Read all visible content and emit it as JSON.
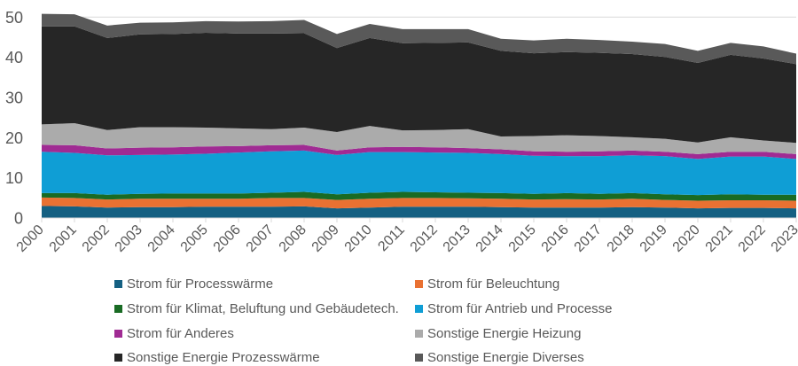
{
  "chart_data": {
    "type": "area",
    "stacked": true,
    "title": "",
    "xlabel": "",
    "ylabel": "",
    "ylim": [
      0,
      50
    ],
    "yticks": [
      "0",
      "10",
      "20",
      "30",
      "40",
      "50"
    ],
    "grid": true,
    "legend_position": "bottom",
    "categories": [
      "2000",
      "2001",
      "2002",
      "2003",
      "2004",
      "2005",
      "2006",
      "2007",
      "2008",
      "2009",
      "2010",
      "2011",
      "2012",
      "2013",
      "2014",
      "2015",
      "2016",
      "2017",
      "2018",
      "2019",
      "2020",
      "2021",
      "2022",
      "2023"
    ],
    "series": [
      {
        "name": "Strom für Processwärme",
        "color": "#156082",
        "values": [
          3.0,
          2.9,
          2.6,
          2.7,
          2.7,
          2.8,
          2.8,
          2.8,
          2.9,
          2.4,
          2.6,
          2.8,
          2.8,
          2.8,
          2.7,
          2.6,
          2.6,
          2.6,
          2.7,
          2.6,
          2.4,
          2.5,
          2.5,
          2.4
        ]
      },
      {
        "name": "Strom für Beleuchtung",
        "color": "#E97132",
        "values": [
          2.1,
          2.1,
          2.0,
          2.1,
          2.1,
          2.0,
          2.0,
          2.2,
          2.1,
          2.1,
          2.2,
          2.2,
          2.2,
          2.1,
          2.1,
          2.0,
          2.1,
          2.0,
          2.1,
          1.9,
          1.9,
          1.9,
          1.9,
          1.9
        ]
      },
      {
        "name": "Strom für Klimat, Beluftung und Gebäudetech.",
        "color": "#196B24",
        "values": [
          1.1,
          1.2,
          1.2,
          1.2,
          1.3,
          1.3,
          1.3,
          1.3,
          1.5,
          1.4,
          1.5,
          1.5,
          1.4,
          1.4,
          1.4,
          1.4,
          1.5,
          1.4,
          1.4,
          1.4,
          1.4,
          1.5,
          1.4,
          1.5
        ]
      },
      {
        "name": "Strom für Antrieb und Processe",
        "color": "#0F9ED5",
        "values": [
          10.3,
          10.0,
          9.8,
          9.7,
          9.7,
          9.9,
          10.2,
          10.3,
          10.3,
          9.8,
          10.1,
          9.9,
          9.9,
          9.9,
          9.7,
          9.5,
          9.2,
          9.4,
          9.4,
          9.5,
          9.0,
          9.4,
          9.5,
          8.9
        ]
      },
      {
        "name": "Strom für Anderes",
        "color": "#A02B93",
        "values": [
          1.7,
          1.9,
          1.7,
          1.8,
          1.8,
          1.8,
          1.6,
          1.5,
          1.4,
          1.1,
          1.2,
          1.3,
          1.3,
          1.2,
          1.2,
          1.1,
          1.1,
          1.2,
          1.2,
          1.1,
          1.2,
          1.2,
          1.2,
          1.2
        ]
      },
      {
        "name": "Sonstige Energie Heizung",
        "color": "#ABABAB",
        "values": [
          5.1,
          5.5,
          4.6,
          5.1,
          5.0,
          4.7,
          4.4,
          4.0,
          4.3,
          4.6,
          5.3,
          4.1,
          4.3,
          4.7,
          3.2,
          3.8,
          4.1,
          3.8,
          3.3,
          3.2,
          2.9,
          3.6,
          2.8,
          2.8
        ]
      },
      {
        "name": "Sonstige Energie Prozesswärme",
        "color": "#262626",
        "values": [
          24.4,
          24.1,
          22.9,
          23.1,
          23.2,
          23.6,
          23.6,
          23.8,
          23.5,
          20.9,
          21.9,
          21.7,
          21.7,
          21.6,
          21.3,
          20.6,
          20.7,
          20.7,
          20.7,
          20.4,
          19.8,
          20.5,
          20.4,
          19.6
        ]
      },
      {
        "name": "Sonstige Energie Diverses",
        "color": "#595959",
        "values": [
          3.1,
          3.0,
          3.1,
          2.9,
          2.9,
          2.9,
          3.0,
          3.1,
          3.3,
          3.5,
          3.5,
          3.5,
          3.4,
          3.3,
          3.0,
          3.2,
          3.3,
          3.2,
          3.1,
          3.2,
          3.0,
          3.0,
          3.0,
          2.6
        ]
      }
    ],
    "legend_order": [
      [
        0,
        1
      ],
      [
        2,
        3
      ],
      [
        4,
        5
      ],
      [
        6,
        7
      ]
    ]
  }
}
